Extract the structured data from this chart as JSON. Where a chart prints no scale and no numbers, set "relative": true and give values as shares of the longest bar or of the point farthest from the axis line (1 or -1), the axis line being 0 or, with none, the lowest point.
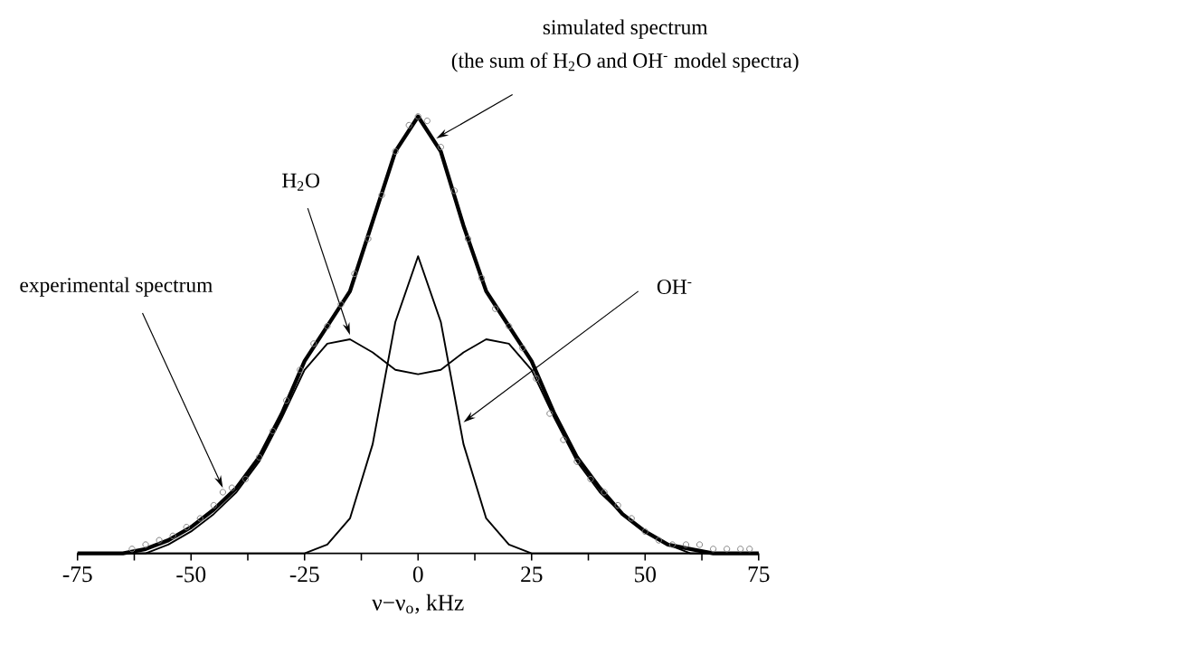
{
  "chart_data": {
    "type": "line",
    "relative": true,
    "xlabel": "ν−ν$_{o}$, kHz",
    "xlim": [
      -75,
      75
    ],
    "xticks": [
      -75,
      {
        "value": -62.5,
        "label": null
      },
      -50,
      {
        "value": -37.5,
        "label": null
      },
      -25,
      {
        "value": -12.5,
        "label": null
      },
      0,
      {
        "value": 12.5,
        "label": null
      },
      25,
      {
        "value": 37.5,
        "label": null
      },
      50,
      {
        "value": 62.5,
        "label": null
      },
      75
    ],
    "x": [
      -75,
      -70,
      -65,
      -60,
      -55,
      -50,
      -45,
      -40,
      -35,
      -30,
      -25,
      -20,
      -15,
      -10,
      -5,
      0,
      5,
      10,
      15,
      20,
      25,
      30,
      35,
      40,
      45,
      50,
      55,
      60,
      65,
      70,
      75
    ],
    "series": [
      {
        "type": "scatter",
        "marker": "circle",
        "color": "#808080",
        "x": [
          -63,
          -60,
          -57,
          -54,
          -51,
          -48,
          -45,
          -43,
          -41,
          -38,
          -35,
          -32,
          -29,
          -26,
          -23,
          -20,
          -17,
          -14,
          -11,
          -8,
          -5,
          -2,
          0,
          2,
          5,
          8,
          11,
          14,
          17,
          20,
          23,
          26,
          29,
          32,
          35,
          38,
          41,
          44,
          47,
          50,
          53,
          56,
          59,
          62,
          65,
          68,
          71,
          73
        ],
        "values": [
          0.01,
          0.02,
          0.03,
          0.04,
          0.06,
          0.08,
          0.11,
          0.14,
          0.15,
          0.17,
          0.22,
          0.28,
          0.35,
          0.42,
          0.48,
          0.52,
          0.57,
          0.64,
          0.72,
          0.82,
          0.92,
          0.98,
          1,
          0.99,
          0.93,
          0.83,
          0.72,
          0.63,
          0.56,
          0.52,
          0.47,
          0.4,
          0.32,
          0.26,
          0.21,
          0.17,
          0.14,
          0.11,
          0.08,
          0.05,
          0.03,
          0.02,
          0.02,
          0.02,
          0.01,
          0.01,
          0.01,
          0.01
        ]
      },
      {
        "color": "#000000",
        "values": [
          0,
          0,
          0,
          0.01,
          0.03,
          0.06,
          0.1,
          0.15,
          0.22,
          0.32,
          0.44,
          0.52,
          0.6,
          0.76,
          0.92,
          1,
          0.92,
          0.75,
          0.6,
          0.52,
          0.44,
          0.32,
          0.22,
          0.15,
          0.09,
          0.05,
          0.02,
          0.01,
          0,
          0,
          0
        ]
      },
      {
        "color": "#000000",
        "values": [
          0,
          0,
          0,
          0,
          0.02,
          0.05,
          0.09,
          0.14,
          0.21,
          0.31,
          0.42,
          0.48,
          0.49,
          0.46,
          0.42,
          0.41,
          0.42,
          0.46,
          0.49,
          0.48,
          0.42,
          0.31,
          0.21,
          0.14,
          0.09,
          0.05,
          0.02,
          0,
          0,
          0,
          0
        ]
      },
      {
        "color": "#000000",
        "values": [
          0,
          0,
          0,
          0,
          0,
          0,
          0,
          0,
          0,
          0,
          0,
          0.02,
          0.08,
          0.25,
          0.53,
          0.68,
          0.53,
          0.25,
          0.08,
          0.02,
          0,
          0,
          0,
          0,
          0,
          0,
          0,
          0,
          0,
          0,
          0
        ]
      }
    ],
    "annotations": [
      "simulated spectrum",
      {
        "text": "(the sum of H$_{2}$O and OH$^{-}$ model spectra)",
        "x": 4,
        "y": 0.95
      },
      {
        "text": "H$_{2}$O",
        "x": -15,
        "y": 0.5
      },
      {
        "text": "OH$^{-}$",
        "x": 10,
        "y": 0.3
      },
      {
        "text": "experimental spectrum",
        "x": -43,
        "y": 0.15
      }
    ]
  }
}
